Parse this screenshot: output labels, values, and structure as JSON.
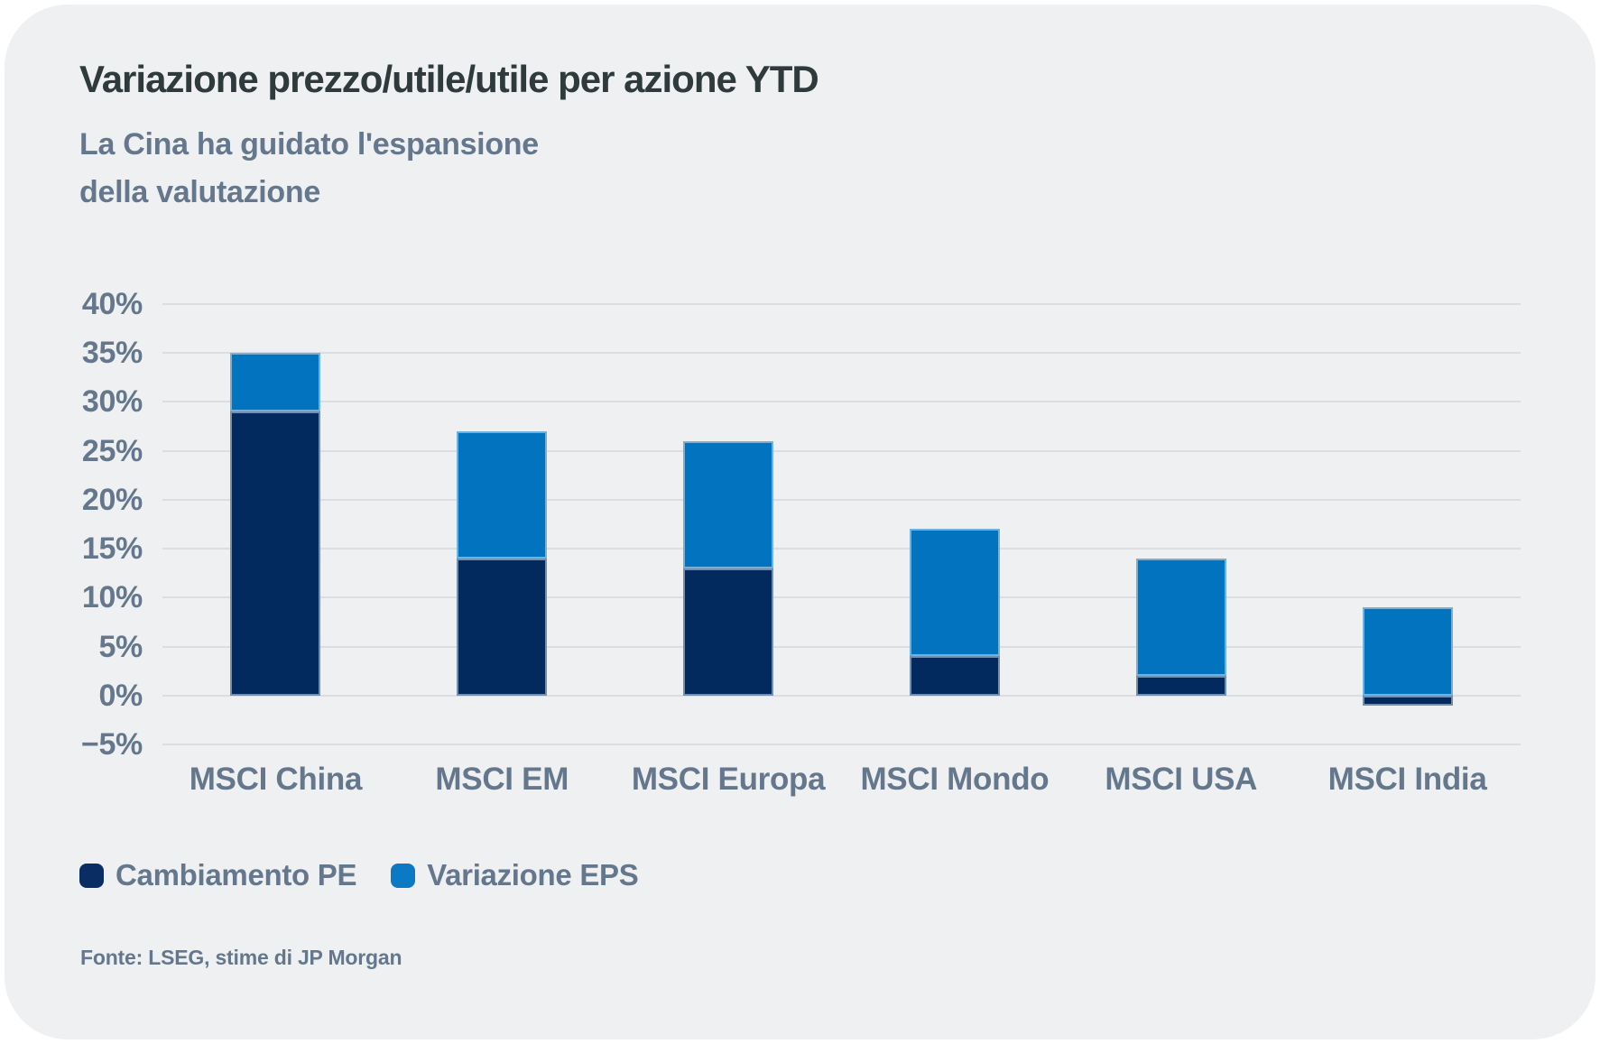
{
  "palette": {
    "page_bg": "#FFFFFF",
    "panel_bg": "#EEF0F2",
    "title_text": "#2E3A3B",
    "muted_text": "#64778C",
    "grid_line": "#DADDE1",
    "pe_navy": "#032A5E",
    "eps_blue": "#0273BE"
  },
  "header": {
    "title": "Variazione prezzo/utile/utile per azione YTD",
    "subtitle_lines": [
      "La Cina ha guidato l'espansione",
      "della valutazione"
    ]
  },
  "legend": {
    "items": [
      {
        "label": "Cambiamento PE",
        "color": "#0A2E63"
      },
      {
        "label": "Variazione EPS",
        "color": "#0B79C4"
      }
    ]
  },
  "footer": {
    "source": "Fonte: LSEG, stime di JP Morgan"
  },
  "chart_data": {
    "type": "bar",
    "stacked": true,
    "title": "Variazione prezzo/utile/utile per azione YTD",
    "subtitle": "La Cina ha guidato l'espansione della valutazione",
    "categories": [
      "MSCI China",
      "MSCI EM",
      "MSCI Europa",
      "MSCI Mondo",
      "MSCI USA",
      "MSCI India"
    ],
    "series": [
      {
        "name": "Cambiamento PE",
        "color": "#032A5E",
        "values": [
          29,
          14,
          13,
          4,
          2,
          -1
        ]
      },
      {
        "name": "Variazione EPS",
        "color": "#0273BE",
        "values": [
          6,
          13,
          13,
          13,
          12,
          9
        ]
      }
    ],
    "stack_top_values": [
      35,
      27,
      26,
      17,
      14,
      9
    ],
    "xlabel": "",
    "ylabel": "",
    "ylim": [
      -5,
      40
    ],
    "ytick_step": 5,
    "ytick_labels": [
      "40%",
      "35%",
      "30%",
      "25%",
      "20%",
      "15%",
      "10%",
      "5%",
      "0%",
      "−5%"
    ],
    "grid": "horizontal",
    "legend_position": "bottom-left",
    "source": "Fonte: LSEG, stime di JP Morgan"
  }
}
